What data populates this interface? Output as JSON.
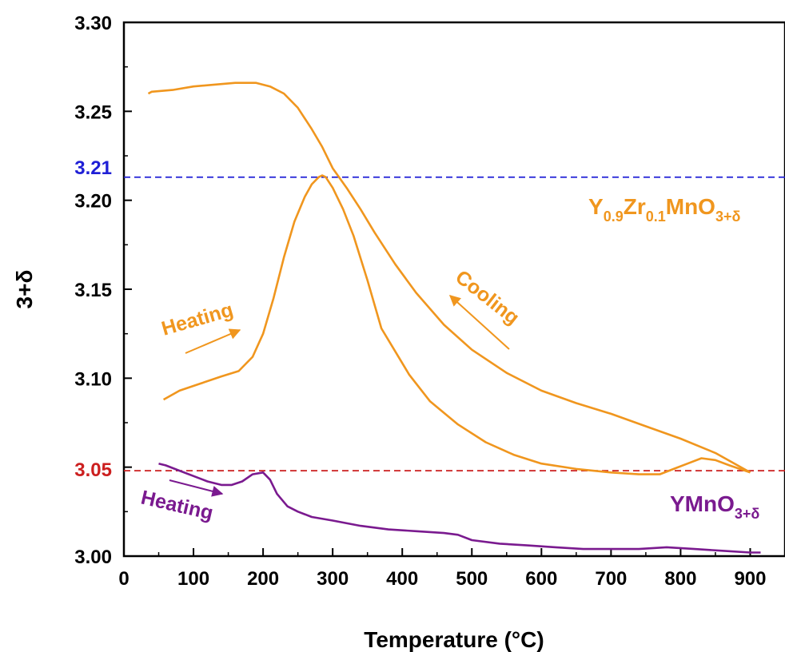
{
  "chart_data": {
    "type": "line",
    "xlabel": "Temperature (°C)",
    "ylabel": "3+δ",
    "xlim": [
      0,
      950
    ],
    "ylim": [
      3.0,
      3.3
    ],
    "x_ticks": [
      "0",
      "100",
      "200",
      "300",
      "400",
      "500",
      "600",
      "700",
      "800",
      "900"
    ],
    "y_ticks": [
      "3.00",
      "3.05",
      "3.10",
      "3.15",
      "3.20",
      "3.25",
      "3.30"
    ],
    "grid": false,
    "reference_lines": [
      {
        "y": 3.213,
        "label": "3.21",
        "color": "#1f1fd6",
        "style": "dashed"
      },
      {
        "y": 3.048,
        "label": "3.05",
        "color": "#cc1f1f",
        "style": "dashed"
      }
    ],
    "series": [
      {
        "name": "Y0.9Zr0.1MnO3+δ heating",
        "color": "#f0961e",
        "x": [
          57,
          80,
          110,
          140,
          165,
          185,
          200,
          215,
          230,
          245,
          260,
          270,
          280,
          285,
          290,
          300,
          315,
          330,
          350,
          370,
          390,
          410,
          440,
          480,
          520,
          560,
          600,
          650,
          700,
          740,
          770,
          790,
          810,
          830,
          850,
          870,
          900
        ],
        "y": [
          3.088,
          3.093,
          3.097,
          3.101,
          3.104,
          3.112,
          3.125,
          3.145,
          3.168,
          3.188,
          3.202,
          3.209,
          3.213,
          3.214,
          3.213,
          3.207,
          3.195,
          3.18,
          3.155,
          3.128,
          3.115,
          3.102,
          3.087,
          3.074,
          3.064,
          3.057,
          3.052,
          3.049,
          3.047,
          3.046,
          3.046,
          3.049,
          3.052,
          3.055,
          3.054,
          3.051,
          3.047
        ]
      },
      {
        "name": "Y0.9Zr0.1MnO3+δ cooling",
        "color": "#f0961e",
        "x": [
          900,
          850,
          800,
          750,
          700,
          650,
          600,
          550,
          500,
          460,
          420,
          390,
          360,
          340,
          320,
          300,
          285,
          270,
          250,
          230,
          210,
          190,
          160,
          130,
          100,
          70,
          40,
          35
        ],
        "y": [
          3.047,
          3.058,
          3.066,
          3.073,
          3.08,
          3.086,
          3.093,
          3.103,
          3.116,
          3.13,
          3.148,
          3.164,
          3.182,
          3.195,
          3.207,
          3.218,
          3.23,
          3.24,
          3.252,
          3.26,
          3.264,
          3.266,
          3.266,
          3.265,
          3.264,
          3.262,
          3.261,
          3.26
        ]
      },
      {
        "name": "YMnO3+δ heating",
        "color": "#7a1a8f",
        "x": [
          50,
          60,
          80,
          100,
          120,
          140,
          155,
          170,
          185,
          200,
          210,
          220,
          235,
          250,
          270,
          300,
          340,
          380,
          420,
          460,
          480,
          500,
          540,
          580,
          620,
          660,
          700,
          740,
          780,
          820,
          860,
          900,
          915
        ],
        "y": [
          3.052,
          3.051,
          3.048,
          3.045,
          3.042,
          3.04,
          3.04,
          3.042,
          3.046,
          3.047,
          3.043,
          3.035,
          3.028,
          3.025,
          3.022,
          3.02,
          3.017,
          3.015,
          3.014,
          3.013,
          3.012,
          3.009,
          3.007,
          3.006,
          3.005,
          3.004,
          3.004,
          3.004,
          3.005,
          3.004,
          3.003,
          3.002,
          3.002
        ]
      }
    ],
    "annotations": {
      "y_highlight_top": "3.21",
      "y_highlight_bottom": "3.05",
      "zr_label": {
        "main": [
          "Y",
          "Zr",
          "MnO"
        ],
        "sub": [
          "0.9",
          "0.1",
          "3+δ"
        ]
      },
      "ymn_label": {
        "main": [
          "YMnO"
        ],
        "sub": [
          "3+δ"
        ]
      },
      "heating_orange": "Heating",
      "cooling_orange": "Cooling",
      "heating_purple": "Heating"
    },
    "colors": {
      "orange": "#f0961e",
      "purple": "#7a1a8f",
      "blue": "#1f1fd6",
      "red": "#cc1f1f"
    }
  }
}
